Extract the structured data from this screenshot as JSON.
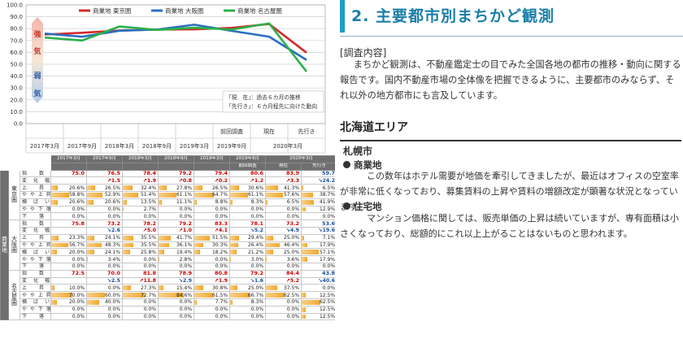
{
  "chart_data": {
    "type": "line",
    "x": [
      "2017年3月",
      "2017年9月",
      "2018年3月",
      "2018年9月",
      "2019年3月",
      "2019年9月",
      "2020年3月",
      "先行き"
    ],
    "x_upper_labels": [
      "",
      "",
      "",
      "",
      "",
      "前回調査",
      "現在",
      "先行き"
    ],
    "ylim": [
      0,
      100
    ],
    "yticks": [
      "0.0",
      "10.0",
      "20.0",
      "30.0",
      "40.0",
      "50.0",
      "60.0",
      "70.0",
      "80.0",
      "90.0",
      "100.0"
    ],
    "series": [
      {
        "name": "商業地 東京圏",
        "color": "#d42a2a",
        "values": [
          75.0,
          76.5,
          78.4,
          79.2,
          79.4,
          80.6,
          83.9,
          59.7
        ]
      },
      {
        "name": "商業地 大阪圏",
        "color": "#2a6fbf",
        "values": [
          75.8,
          73.2,
          78.2,
          79.2,
          83.3,
          78.1,
          73.2,
          53.6
        ]
      },
      {
        "name": "商業地 名古屋圏",
        "color": "#2db04a",
        "values": [
          72.5,
          70.0,
          81.8,
          78.9,
          80.8,
          79.2,
          84.4,
          43.8
        ]
      }
    ],
    "side_labels": [
      "強",
      "気",
      "弱",
      "気"
    ],
    "notes": [
      "「現　在」：過去６カ月の推移",
      "「先行き」：６カ月程先に向けた動向"
    ]
  },
  "table": {
    "group_label": "商業地",
    "header_top": [
      "2017年3月",
      "2017年9月",
      "2018年3月",
      "2018年9月",
      "2019年3月",
      "2019年9月",
      "2020年3月"
    ],
    "header_sub": [
      "",
      "",
      "",
      "",
      "",
      "前回調査",
      "現在",
      "先行き"
    ],
    "row_labels": [
      "指　　数",
      "変　化　幅",
      "上　　昇",
      "や や 上 昇",
      "横　ば　い",
      "や や 下 落",
      "下　　落"
    ],
    "cities": [
      {
        "name": "東京圏",
        "index": [
          "75.0",
          "76.5",
          "78.4",
          "79.2",
          "79.4",
          "80.6",
          "83.9",
          "59.7"
        ],
        "change": [
          "",
          "↗1.5",
          "↗1.9",
          "↗0.8",
          "↗0.2",
          "↗1.2",
          "↗3.3",
          "↘24.2"
        ],
        "change_dir": [
          "",
          "up",
          "up",
          "up",
          "up",
          "up",
          "up",
          "dn"
        ],
        "rows": [
          [
            "20.6%",
            "26.5%",
            "32.4%",
            "27.8%",
            "26.5%",
            "30.6%",
            "41.3%",
            "6.5%"
          ],
          [
            "58.8%",
            "52.9%",
            "51.4%",
            "61.1%",
            "64.7%",
            "61.1%",
            "57.6%",
            "38.7%"
          ],
          [
            "20.6%",
            "20.6%",
            "13.5%",
            "11.1%",
            "8.8%",
            "8.3%",
            "6.5%",
            "41.9%"
          ],
          [
            "0.0%",
            "0.0%",
            "2.7%",
            "0.0%",
            "0.0%",
            "0.0%",
            "0.0%",
            "12.9%"
          ],
          [
            "0.0%",
            "0.0%",
            "0.0%",
            "0.0%",
            "0.0%",
            "0.0%",
            "0.0%",
            "0.0%"
          ]
        ]
      },
      {
        "name": "大阪圏",
        "index": [
          "75.8",
          "73.2",
          "78.2",
          "79.2",
          "83.3",
          "78.1",
          "73.2",
          "53.6"
        ],
        "change": [
          "",
          "↘2.6",
          "↗5.0",
          "↗1.0",
          "↗4.1",
          "↘5.2",
          "↘4.9",
          "↘19.6"
        ],
        "change_dir": [
          "",
          "dn",
          "up",
          "up",
          "up",
          "dn",
          "dn",
          "dn"
        ],
        "rows": [
          [
            "23.3%",
            "24.1%",
            "35.5%",
            "41.7%",
            "51.5%",
            "29.4%",
            "25.0%",
            "7.1%"
          ],
          [
            "56.7%",
            "48.3%",
            "35.5%",
            "36.1%",
            "30.3%",
            "26.4%",
            "46.4%",
            "17.9%"
          ],
          [
            "20.0%",
            "24.1%",
            "25.8%",
            "19.4%",
            "18.2%",
            "21.2%",
            "25.0%",
            "57.1%"
          ],
          [
            "0.0%",
            "3.4%",
            "0.0%",
            "2.8%",
            "0.0%",
            "3.0%",
            "3.6%",
            "17.9%"
          ],
          [
            "0.0%",
            "0.0%",
            "0.0%",
            "0.0%",
            "0.0%",
            "0.0%",
            "0.0%",
            "0.0%"
          ]
        ]
      },
      {
        "name": "名古屋圏",
        "index": [
          "72.5",
          "70.0",
          "81.8",
          "78.9",
          "80.8",
          "79.2",
          "84.4",
          "43.8"
        ],
        "change": [
          "",
          "↘2.5",
          "↗11.8",
          "↘2.9",
          "↗1.9",
          "↘1.6",
          "↗5.2",
          "↘40.6"
        ],
        "change_dir": [
          "",
          "dn",
          "up",
          "dn",
          "up",
          "dn",
          "up",
          "dn"
        ],
        "rows": [
          [
            "10.0%",
            "0.0%",
            "27.3%",
            "15.4%",
            "30.8%",
            "25.0%",
            "37.5%",
            "0.0%"
          ],
          [
            "70.0%",
            "60.0%",
            "72.7%",
            "84.6%",
            "61.5%",
            "66.7%",
            "62.5%",
            "12.5%"
          ],
          [
            "20.0%",
            "40.0%",
            "0.0%",
            "0.0%",
            "7.7%",
            "8.3%",
            "0.0%",
            "62.5%"
          ],
          [
            "0.0%",
            "0.0%",
            "0.0%",
            "0.0%",
            "0.0%",
            "0.0%",
            "0.0%",
            "12.5%"
          ],
          [
            "0.0%",
            "0.0%",
            "0.0%",
            "0.0%",
            "0.0%",
            "0.0%",
            "0.0%",
            "12.5%"
          ]
        ]
      }
    ]
  },
  "doc": {
    "title": "2. 主要都市別まちかど観測",
    "section_label": "[調査内容]",
    "intro": "まちかど観測は、不動産鑑定士の目でみた全国各地の都市の推移・動向に関する報告です。国内不動産市場の全体像を把握できるように、主要都市のみならず、それ以外の地方都市にも言及しています。",
    "area": "北海道エリア",
    "city": "札幌市",
    "items": [
      {
        "label": "商業地",
        "text": "この数年はホテル需要が地価を牽引してきましたが、最近はオフィスの空室率が非常に低くなっており、募集賃料の上昇や賃料の増額改定が顕著な状況となっています。"
      },
      {
        "label": "住宅地",
        "text": "マンション価格に関しては、販売単価の上昇は続いていますが、専有面積は小さくなっており、総額的にこれ以上上がることはないものと思われます。"
      }
    ]
  }
}
